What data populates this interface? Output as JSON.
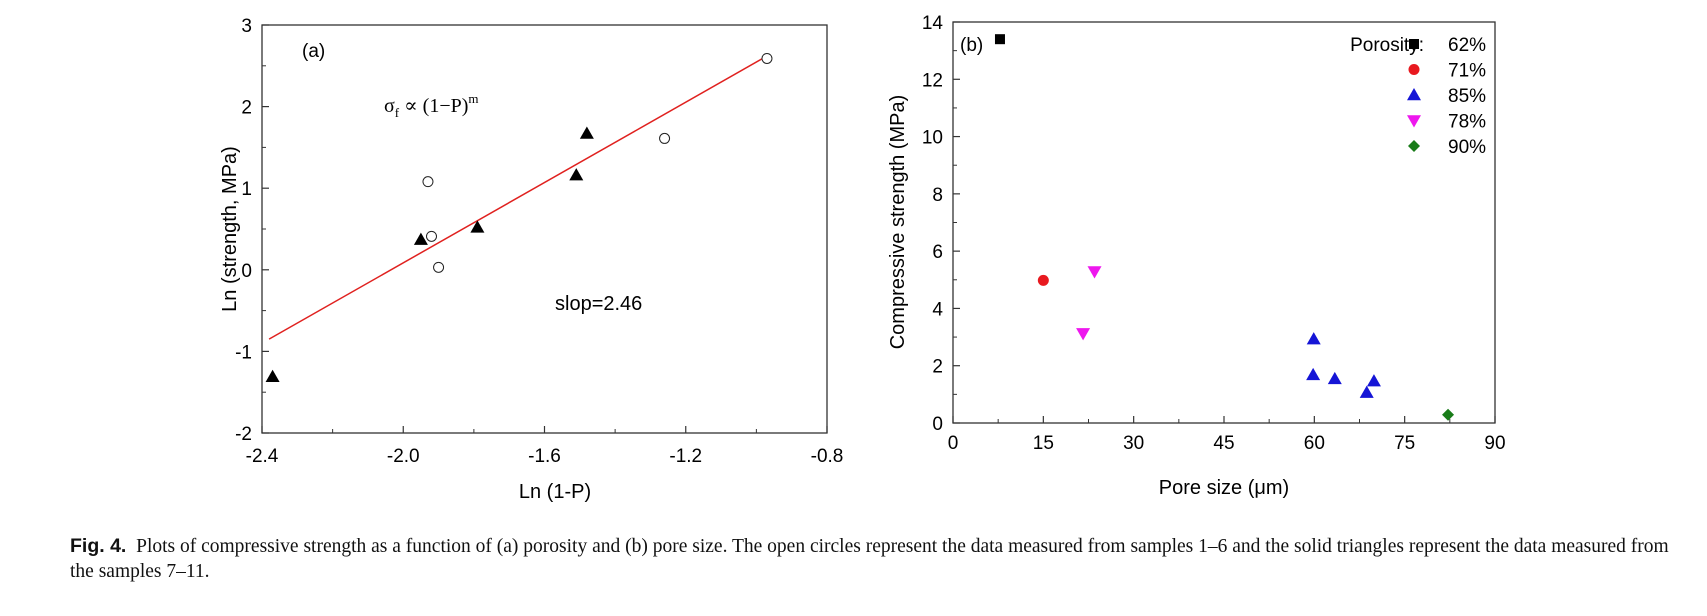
{
  "chart_data": [
    {
      "type": "scatter",
      "panel_label": "(a)",
      "xlabel": "Ln (1-P)",
      "ylabel": "Ln (strength, MPa)",
      "xlim": [
        -2.4,
        -0.8
      ],
      "ylim": [
        -2,
        3
      ],
      "xticks": [
        "-2.4",
        "-2.0",
        "-1.6",
        "-1.2",
        "-0.8"
      ],
      "yticks": [
        "-2",
        "-1",
        "0",
        "1",
        "2",
        "3"
      ],
      "equation": {
        "sigma": "σ",
        "sub": "f",
        "rest": " ∝ (1−P)",
        "sup": "m"
      },
      "annotation": "slop=2.46",
      "series": [
        {
          "marker": "open-circle",
          "x": [
            -1.93,
            -1.92,
            -1.9,
            -1.26,
            -0.97
          ],
          "y": [
            1.08,
            0.41,
            0.03,
            1.61,
            2.59
          ]
        },
        {
          "marker": "filled-triangle",
          "x": [
            -2.37,
            -1.95,
            -1.79,
            -1.51,
            -1.48
          ],
          "y": [
            -1.31,
            0.37,
            0.52,
            1.16,
            1.67
          ]
        }
      ],
      "fit_line": {
        "x": [
          -2.38,
          -0.97
        ],
        "y": [
          -0.85,
          2.62
        ],
        "color": "#e0211f"
      },
      "grid": false
    },
    {
      "type": "scatter",
      "panel_label": "(b)",
      "xlabel": "Pore size (μm)",
      "ylabel": "Compressive strength (MPa)",
      "xlim": [
        0,
        90
      ],
      "ylim": [
        0,
        14
      ],
      "xticks": [
        "0",
        "15",
        "30",
        "45",
        "60",
        "75",
        "90"
      ],
      "yticks": [
        "0",
        "2",
        "4",
        "6",
        "8",
        "10",
        "12",
        "14"
      ],
      "legend_title": "Porosity:",
      "legend_position": "top-right",
      "series": [
        {
          "name": "62%",
          "marker": "square",
          "color": "#000000",
          "x": [
            7.8
          ],
          "y": [
            13.4
          ]
        },
        {
          "name": "71%",
          "marker": "circle",
          "color": "#e8191f",
          "x": [
            15.0
          ],
          "y": [
            4.98
          ]
        },
        {
          "name": "85%",
          "marker": "triangle-up",
          "color": "#1515d6",
          "x": [
            59.9,
            59.8,
            63.4,
            68.7,
            69.9
          ],
          "y": [
            2.93,
            1.68,
            1.54,
            1.06,
            1.46
          ]
        },
        {
          "name": "78%",
          "marker": "triangle-down",
          "color": "#ee17ee",
          "x": [
            23.5,
            21.6
          ],
          "y": [
            5.29,
            3.13
          ]
        },
        {
          "name": "90%",
          "marker": "diamond",
          "color": "#197c19",
          "x": [
            82.2
          ],
          "y": [
            0.29
          ]
        }
      ],
      "grid": false
    }
  ],
  "caption": {
    "label": "Fig. 4.",
    "text": "Plots of compressive strength as a function of (a) porosity and (b) pore size. The open circles represent the data measured from samples 1–6 and the solid triangles represent the data measured from the samples 7–11."
  }
}
